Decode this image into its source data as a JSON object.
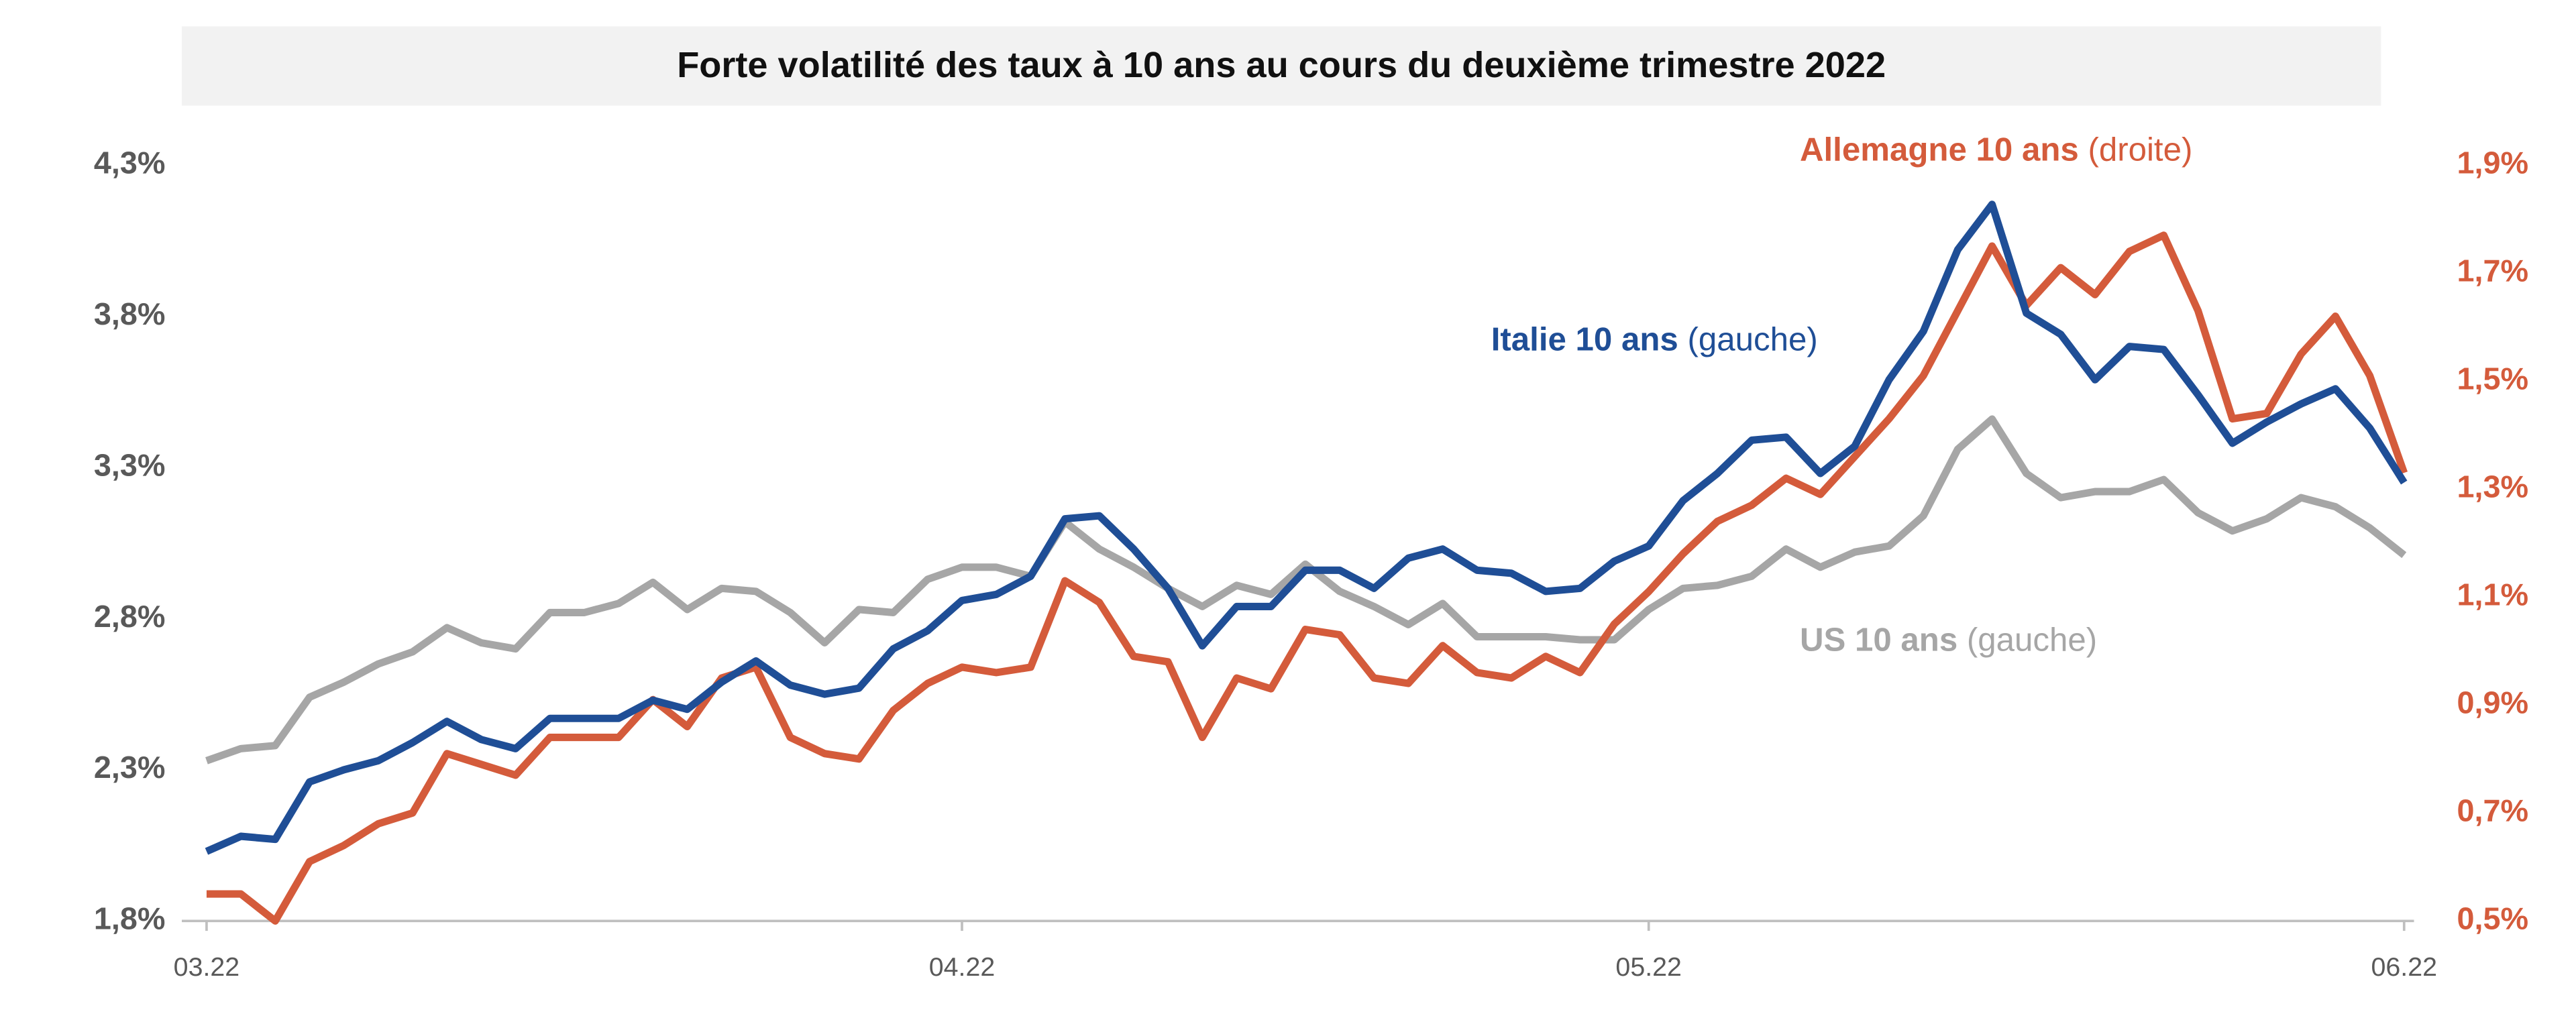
{
  "chart_data": {
    "type": "line",
    "title": "Forte volatilité des taux à 10 ans au cours du deuxième trimestre 2022",
    "categories": [
      "03.22",
      null,
      null,
      null,
      null,
      null,
      null,
      null,
      null,
      null,
      null,
      null,
      null,
      null,
      null,
      null,
      null,
      null,
      null,
      null,
      null,
      null,
      "04.22",
      null,
      null,
      null,
      null,
      null,
      null,
      null,
      null,
      null,
      null,
      null,
      null,
      null,
      null,
      null,
      null,
      null,
      null,
      null,
      "05.22",
      null,
      null,
      null,
      null,
      null,
      null,
      null,
      null,
      null,
      null,
      null,
      null,
      null,
      null,
      null,
      null,
      null,
      null,
      null,
      null,
      null,
      "06.22"
    ],
    "ylim": [
      1.8,
      4.3
    ],
    "yticks": [
      {
        "value": 1.8,
        "label": "1,8%"
      },
      {
        "value": 2.3,
        "label": "2,3%"
      },
      {
        "value": 2.8,
        "label": "2,8%"
      },
      {
        "value": 3.3,
        "label": "3,3%"
      },
      {
        "value": 3.8,
        "label": "3,8%"
      },
      {
        "value": 4.3,
        "label": "4,3%"
      }
    ],
    "y2lim": [
      0.5,
      1.9
    ],
    "y2ticks": [
      {
        "value": 0.5,
        "label": "0,5%"
      },
      {
        "value": 0.7,
        "label": "0,7%"
      },
      {
        "value": 0.9,
        "label": "0,9%"
      },
      {
        "value": 1.1,
        "label": "1,1%"
      },
      {
        "value": 1.3,
        "label": "1,3%"
      },
      {
        "value": 1.5,
        "label": "1,5%"
      },
      {
        "value": 1.7,
        "label": "1,7%"
      },
      {
        "value": 1.9,
        "label": "1,9%"
      }
    ],
    "series": [
      {
        "name": "US 10 ans",
        "axis_note": "(gauche)",
        "color": "#a6a6a6",
        "axis": "y",
        "values": [
          2.33,
          2.37,
          2.38,
          2.54,
          2.59,
          2.65,
          2.69,
          2.77,
          2.72,
          2.7,
          2.82,
          2.82,
          2.85,
          2.92,
          2.83,
          2.9,
          2.89,
          2.82,
          2.72,
          2.83,
          2.82,
          2.93,
          2.97,
          2.97,
          2.94,
          3.12,
          3.03,
          2.97,
          2.9,
          2.84,
          2.91,
          2.88,
          2.98,
          2.89,
          2.84,
          2.78,
          2.85,
          2.74,
          2.74,
          2.74,
          2.73,
          2.73,
          2.83,
          2.9,
          2.91,
          2.94,
          3.03,
          2.97,
          3.02,
          3.04,
          3.14,
          3.36,
          3.46,
          3.28,
          3.2,
          3.22,
          3.22,
          3.26,
          3.15,
          3.09,
          3.13,
          3.2,
          3.17,
          3.1,
          3.01
        ]
      },
      {
        "name": "Allemagne 10 ans",
        "axis_note": "(droite)",
        "color": "#d45b3b",
        "axis": "y2",
        "values": [
          0.55,
          0.55,
          0.5,
          0.61,
          0.64,
          0.68,
          0.7,
          0.81,
          0.79,
          0.77,
          0.84,
          0.84,
          0.84,
          0.91,
          0.86,
          0.95,
          0.97,
          0.84,
          0.81,
          0.8,
          0.89,
          0.94,
          0.97,
          0.96,
          0.97,
          1.13,
          1.09,
          0.99,
          0.98,
          0.84,
          0.95,
          0.93,
          1.04,
          1.03,
          0.95,
          0.94,
          1.01,
          0.96,
          0.95,
          0.99,
          0.96,
          1.05,
          1.11,
          1.18,
          1.24,
          1.27,
          1.32,
          1.29,
          1.36,
          1.43,
          1.51,
          1.63,
          1.75,
          1.64,
          1.71,
          1.66,
          1.74,
          1.77,
          1.63,
          1.43,
          1.44,
          1.55,
          1.62,
          1.51,
          1.33
        ]
      },
      {
        "name": "Italie 10 ans",
        "axis_note": "(gauche)",
        "color": "#1f4e96",
        "axis": "y",
        "values": [
          2.03,
          2.08,
          2.07,
          2.26,
          2.3,
          2.33,
          2.39,
          2.46,
          2.4,
          2.37,
          2.47,
          2.47,
          2.47,
          2.53,
          2.5,
          2.59,
          2.66,
          2.58,
          2.55,
          2.57,
          2.7,
          2.76,
          2.86,
          2.88,
          2.94,
          3.13,
          3.14,
          3.03,
          2.9,
          2.71,
          2.84,
          2.84,
          2.96,
          2.96,
          2.9,
          3.0,
          3.03,
          2.96,
          2.95,
          2.89,
          2.9,
          2.99,
          3.04,
          3.19,
          3.28,
          3.39,
          3.4,
          3.28,
          3.37,
          3.59,
          3.75,
          4.02,
          4.17,
          3.81,
          3.74,
          3.59,
          3.7,
          3.69,
          3.54,
          3.38,
          3.45,
          3.51,
          3.56,
          3.43,
          3.25
        ]
      }
    ]
  }
}
